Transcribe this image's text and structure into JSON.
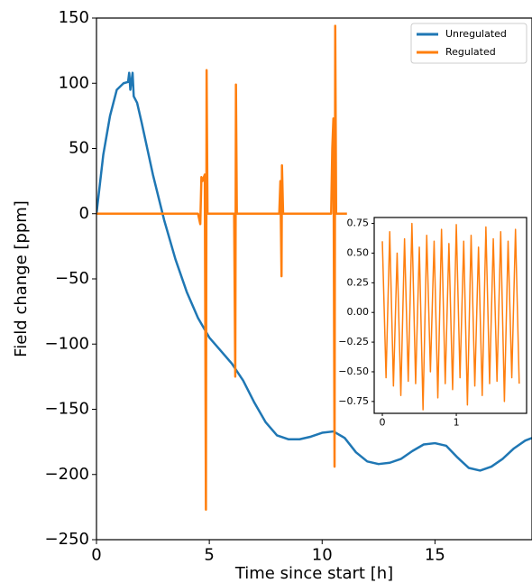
{
  "chart_data": [
    {
      "type": "line",
      "x_label": "Time since start [h]",
      "y_label": "Field change [ppm]",
      "xlim": [
        0,
        19.3
      ],
      "ylim": [
        -250,
        150
      ],
      "xticks": [
        0,
        5,
        10,
        15
      ],
      "yticks": [
        {
          "value": -250,
          "label": "−250"
        },
        {
          "value": -200,
          "label": "−200"
        },
        {
          "value": -150,
          "label": "−150"
        },
        {
          "value": -100,
          "label": "−100"
        },
        {
          "value": -50,
          "label": "−50"
        },
        0,
        50,
        100,
        150
      ],
      "legend": "upper right",
      "series": [
        {
          "name": "Unregulated",
          "color": "#1f77b4",
          "x": [
            0,
            0.3,
            0.6,
            0.9,
            1.2,
            1.4,
            1.45,
            1.5,
            1.6,
            1.65,
            1.8,
            2.0,
            2.5,
            3,
            3.5,
            4,
            4.5,
            5,
            5.5,
            6,
            6.5,
            7,
            7.5,
            8,
            8.5,
            9,
            9.5,
            10,
            10.5,
            11,
            11.5,
            12,
            12.5,
            13,
            13.5,
            14,
            14.5,
            15,
            15.5,
            16,
            16.5,
            17,
            17.5,
            18,
            18.5,
            19,
            19.3
          ],
          "values": [
            0,
            45,
            75,
            95,
            100,
            101,
            108,
            95,
            108,
            90,
            85,
            70,
            30,
            -5,
            -35,
            -60,
            -80,
            -95,
            -105,
            -115,
            -128,
            -145,
            -160,
            -170,
            -173,
            -173,
            -171,
            -168,
            -167,
            -172,
            -183,
            -190,
            -192,
            -191,
            -188,
            -182,
            -177,
            -176,
            -178,
            -187,
            -195,
            -197,
            -194,
            -188,
            -180,
            -174,
            -172
          ]
        },
        {
          "name": "Regulated",
          "color": "#ff7f0e",
          "x": [
            0,
            4.5,
            4.6,
            4.65,
            4.7,
            4.8,
            4.85,
            4.88,
            4.92,
            6.1,
            6.15,
            6.18,
            6.22,
            8.1,
            8.15,
            8.2,
            8.22,
            8.27,
            10.4,
            10.45,
            10.5,
            10.55,
            10.58,
            10.62,
            11.1
          ],
          "values": [
            0,
            0,
            -8,
            28,
            25,
            30,
            -227,
            110,
            0,
            0,
            -125,
            99,
            0,
            0,
            25,
            -48,
            37,
            0,
            0,
            50,
            73,
            -194,
            144,
            0,
            0
          ]
        }
      ]
    },
    {
      "type": "line",
      "xlim": [
        -0.11,
        1.95
      ],
      "ylim": [
        -0.85,
        0.8
      ],
      "xticks": [
        0,
        1
      ],
      "yticks": [
        {
          "value": -0.75,
          "label": "−0.75"
        },
        {
          "value": -0.5,
          "label": "−0.50"
        },
        {
          "value": -0.25,
          "label": "−0.25"
        },
        {
          "value": 0,
          "label": "0.00"
        },
        0.25,
        {
          "value": 0.5,
          "label": "0.50"
        },
        0.75
      ],
      "series": [
        {
          "color": "#ff7f0e",
          "x": [
            0,
            0.05,
            0.1,
            0.15,
            0.2,
            0.25,
            0.3,
            0.35,
            0.4,
            0.45,
            0.5,
            0.55,
            0.6,
            0.65,
            0.7,
            0.75,
            0.8,
            0.85,
            0.9,
            0.95,
            1.0,
            1.05,
            1.1,
            1.15,
            1.2,
            1.25,
            1.3,
            1.35,
            1.4,
            1.45,
            1.5,
            1.55,
            1.6,
            1.65,
            1.7,
            1.75,
            1.8,
            1.85
          ],
          "values": [
            0.6,
            -0.55,
            0.68,
            -0.62,
            0.5,
            -0.7,
            0.62,
            -0.58,
            0.75,
            -0.6,
            0.55,
            -0.82,
            0.65,
            -0.5,
            0.6,
            -0.72,
            0.7,
            -0.6,
            0.58,
            -0.65,
            0.74,
            -0.55,
            0.6,
            -0.78,
            0.65,
            -0.62,
            0.55,
            -0.7,
            0.72,
            -0.6,
            0.62,
            -0.58,
            0.68,
            -0.75,
            0.6,
            -0.55,
            0.7,
            -0.6
          ]
        }
      ]
    }
  ]
}
